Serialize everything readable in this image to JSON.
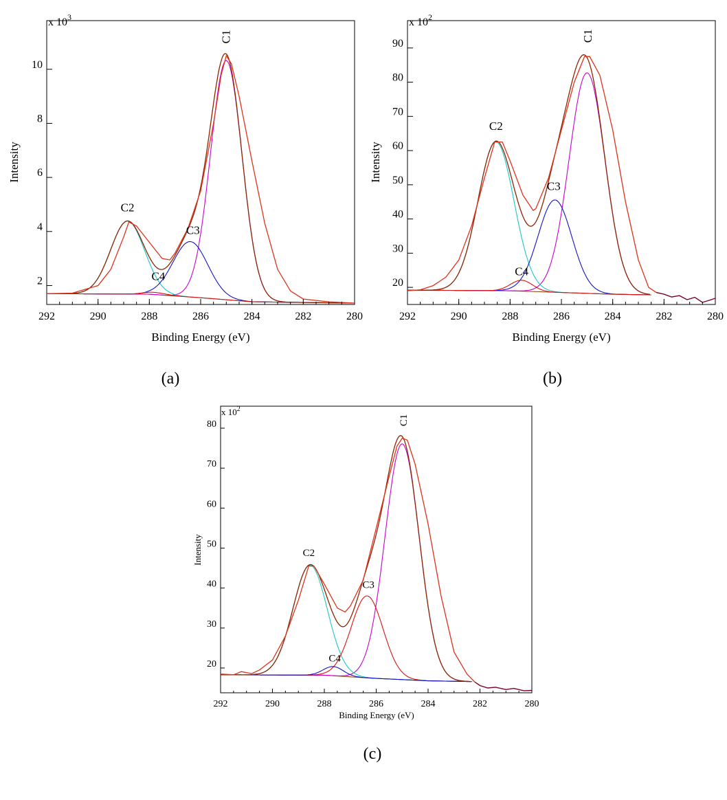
{
  "chart_data": [
    {
      "type": "line",
      "panel_label": "(a)",
      "title": "",
      "xlabel": "Binding Energy (eV)",
      "ylabel": "Intensity",
      "multiplier_label": "x 10",
      "multiplier_exp": "3",
      "xlim": [
        292,
        280
      ],
      "ylim": [
        1.3,
        11.8
      ],
      "x_ticks": [
        292,
        290,
        288,
        286,
        284,
        282,
        280
      ],
      "y_ticks": [
        2,
        4,
        6,
        8,
        10
      ],
      "grid": false,
      "baseline": [
        [
          292,
          1.7
        ],
        [
          288,
          1.68
        ],
        [
          286,
          1.55
        ],
        [
          284,
          1.4
        ],
        [
          280,
          1.35
        ]
      ],
      "envelope": [
        [
          292,
          1.7
        ],
        [
          291,
          1.72
        ],
        [
          290,
          2.0
        ],
        [
          289.5,
          2.6
        ],
        [
          289,
          3.8
        ],
        [
          288.8,
          4.35
        ],
        [
          288.5,
          4.2
        ],
        [
          288,
          3.6
        ],
        [
          287.5,
          3.0
        ],
        [
          287.2,
          2.95
        ],
        [
          287,
          3.2
        ],
        [
          286.5,
          4.1
        ],
        [
          286,
          5.5
        ],
        [
          285.5,
          8.0
        ],
        [
          285.2,
          9.8
        ],
        [
          285,
          10.5
        ],
        [
          284.8,
          10.2
        ],
        [
          284.5,
          9.0
        ],
        [
          284,
          6.6
        ],
        [
          283.5,
          4.3
        ],
        [
          283,
          2.6
        ],
        [
          282.5,
          1.8
        ],
        [
          282,
          1.5
        ],
        [
          281,
          1.4
        ],
        [
          280,
          1.35
        ]
      ],
      "components": [
        {
          "name": "C1",
          "label": "C1",
          "color": "#cc00cc",
          "center": 285.0,
          "height": 8.85,
          "fwhm": 1.45
        },
        {
          "name": "C2",
          "label": "C2",
          "color": "#18c6c6",
          "center": 288.85,
          "height": 2.7,
          "fwhm": 1.55
        },
        {
          "name": "C3",
          "label": "C3",
          "color": "#1010cc",
          "center": 286.4,
          "height": 2.05,
          "fwhm": 1.6
        },
        {
          "name": "C4",
          "label": "C4",
          "color": "#dd1111",
          "center": 287.8,
          "height": 0.08,
          "fwhm": 1.0
        }
      ],
      "labels": [
        {
          "text": "C1",
          "x": 285.0,
          "y": 10.95,
          "color": "#000000",
          "rotate": true
        },
        {
          "text": "C2",
          "x": 288.85,
          "y": 4.75,
          "color": "#18c6c6"
        },
        {
          "text": "C3",
          "x": 286.3,
          "y": 3.9,
          "color": "#1010cc"
        },
        {
          "text": "C4",
          "x": 287.65,
          "y": 2.2,
          "color": "#dd1111"
        }
      ]
    },
    {
      "type": "line",
      "panel_label": "(b)",
      "title": "",
      "xlabel": "Binding Energy (eV)",
      "ylabel": "Intensity",
      "multiplier_label": "x 10",
      "multiplier_exp": "2",
      "xlim": [
        292,
        280
      ],
      "ylim": [
        15,
        98
      ],
      "x_ticks": [
        292,
        290,
        288,
        286,
        284,
        282,
        280
      ],
      "y_ticks": [
        20,
        30,
        40,
        50,
        60,
        70,
        80,
        90
      ],
      "grid": false,
      "baseline": [
        [
          292,
          19.2
        ],
        [
          288,
          19.0
        ],
        [
          286,
          18.5
        ],
        [
          284,
          18.0
        ],
        [
          282.5,
          17.8
        ]
      ],
      "envelope": [
        [
          292,
          19
        ],
        [
          291.5,
          19.3
        ],
        [
          291,
          20.5
        ],
        [
          290.5,
          23
        ],
        [
          290,
          28
        ],
        [
          289.5,
          38
        ],
        [
          289,
          52
        ],
        [
          288.6,
          62.5
        ],
        [
          288.3,
          62.5
        ],
        [
          288,
          57
        ],
        [
          287.5,
          47
        ],
        [
          287.1,
          42.5
        ],
        [
          287,
          43
        ],
        [
          286.5,
          52
        ],
        [
          286,
          66
        ],
        [
          285.5,
          80
        ],
        [
          285.1,
          87.5
        ],
        [
          284.9,
          87.5
        ],
        [
          284.5,
          82
        ],
        [
          284,
          66
        ],
        [
          283.5,
          45
        ],
        [
          283,
          28
        ],
        [
          282.6,
          20
        ],
        [
          282.3,
          18.5
        ]
      ],
      "noise_tail": [
        [
          282.3,
          18.5
        ],
        [
          282,
          18
        ],
        [
          281.7,
          17.2
        ],
        [
          281.4,
          17.6
        ],
        [
          281.1,
          16.4
        ],
        [
          280.8,
          17.1
        ],
        [
          280.5,
          15.6
        ],
        [
          280.2,
          16.3
        ],
        [
          280,
          16.8
        ]
      ],
      "components": [
        {
          "name": "C1",
          "label": "C1",
          "color": "#cc00cc",
          "center": 285.0,
          "height": 64.5,
          "fwhm": 1.65
        },
        {
          "name": "C2",
          "label": "C2",
          "color": "#18c6c6",
          "center": 288.55,
          "height": 43.5,
          "fwhm": 1.65
        },
        {
          "name": "C3",
          "label": "C3",
          "color": "#1010cc",
          "center": 286.25,
          "height": 27,
          "fwhm": 1.55
        },
        {
          "name": "C4",
          "label": "C4",
          "color": "#dd1111",
          "center": 287.55,
          "height": 3.2,
          "fwhm": 1.0
        }
      ],
      "labels": [
        {
          "text": "C1",
          "x": 284.95,
          "y": 91.5,
          "color": "#000000",
          "rotate": true
        },
        {
          "text": "C2",
          "x": 288.55,
          "y": 66,
          "color": "#18c6c6"
        },
        {
          "text": "C3",
          "x": 286.3,
          "y": 48.5,
          "color": "#1010cc"
        },
        {
          "text": "C4",
          "x": 287.55,
          "y": 23.5,
          "color": "#dd1111"
        }
      ]
    },
    {
      "type": "line",
      "panel_label": "(c)",
      "title": "",
      "xlabel": "Binding Energy (eV)",
      "ylabel": "Intensity",
      "multiplier_label": "x 10",
      "multiplier_exp": "2",
      "xlim": [
        292,
        280
      ],
      "ylim": [
        13.8,
        85.5
      ],
      "x_ticks": [
        292,
        290,
        288,
        286,
        284,
        282,
        280
      ],
      "y_ticks": [
        20,
        30,
        40,
        50,
        60,
        70,
        80
      ],
      "grid": false,
      "baseline": [
        [
          292,
          18.3
        ],
        [
          288,
          18.2
        ],
        [
          286,
          17.4
        ],
        [
          284,
          16.8
        ],
        [
          282.3,
          16.6
        ]
      ],
      "envelope": [
        [
          292,
          18.5
        ],
        [
          291.5,
          18.3
        ],
        [
          291.2,
          19.1
        ],
        [
          290.8,
          18.6
        ],
        [
          290.5,
          19.5
        ],
        [
          290,
          22
        ],
        [
          289.5,
          28
        ],
        [
          289,
          37
        ],
        [
          288.6,
          45.5
        ],
        [
          288.4,
          45.5
        ],
        [
          288,
          41
        ],
        [
          287.5,
          35
        ],
        [
          287.2,
          34
        ],
        [
          287,
          35.5
        ],
        [
          286.5,
          42
        ],
        [
          286,
          55
        ],
        [
          285.5,
          68
        ],
        [
          285.2,
          75.5
        ],
        [
          285,
          77.5
        ],
        [
          284.8,
          77
        ],
        [
          284.5,
          71
        ],
        [
          284,
          56
        ],
        [
          283.5,
          38
        ],
        [
          283,
          24
        ],
        [
          282.5,
          18.5
        ],
        [
          282.2,
          16.5
        ]
      ],
      "noise_tail": [
        [
          282.2,
          16.5
        ],
        [
          282,
          15.6
        ],
        [
          281.7,
          15
        ],
        [
          281.4,
          15.2
        ],
        [
          281,
          14.6
        ],
        [
          280.7,
          14.9
        ],
        [
          280.3,
          14.3
        ],
        [
          280,
          14.4
        ]
      ],
      "components": [
        {
          "name": "C1",
          "label": "C1",
          "color": "#cc00cc",
          "center": 285.0,
          "height": 59,
          "fwhm": 1.55
        },
        {
          "name": "C2",
          "label": "C2",
          "color": "#18c6c6",
          "center": 288.55,
          "height": 27.5,
          "fwhm": 1.55
        },
        {
          "name": "C3",
          "label": "C3",
          "color": "#dd1111",
          "center": 286.35,
          "height": 20.5,
          "fwhm": 1.45
        },
        {
          "name": "C4",
          "label": "C4",
          "color": "#1010cc",
          "center": 287.65,
          "height": 2.3,
          "fwhm": 0.9
        }
      ],
      "labels": [
        {
          "text": "C1",
          "x": 284.95,
          "y": 80.5,
          "color": "#000000",
          "rotate": true
        },
        {
          "text": "C2",
          "x": 288.6,
          "y": 48,
          "color": "#18c6c6"
        },
        {
          "text": "C3",
          "x": 286.3,
          "y": 40,
          "color": "#dd1111"
        },
        {
          "text": "C4",
          "x": 287.6,
          "y": 21.6,
          "color": "#1010cc"
        }
      ]
    }
  ],
  "style": {
    "envelope_color": "#e0301a",
    "fit_color": "#8b2500",
    "noise_color": "#7a0022",
    "baseline_color": "#8b4513",
    "watermark_color": "#d8d8d8"
  }
}
